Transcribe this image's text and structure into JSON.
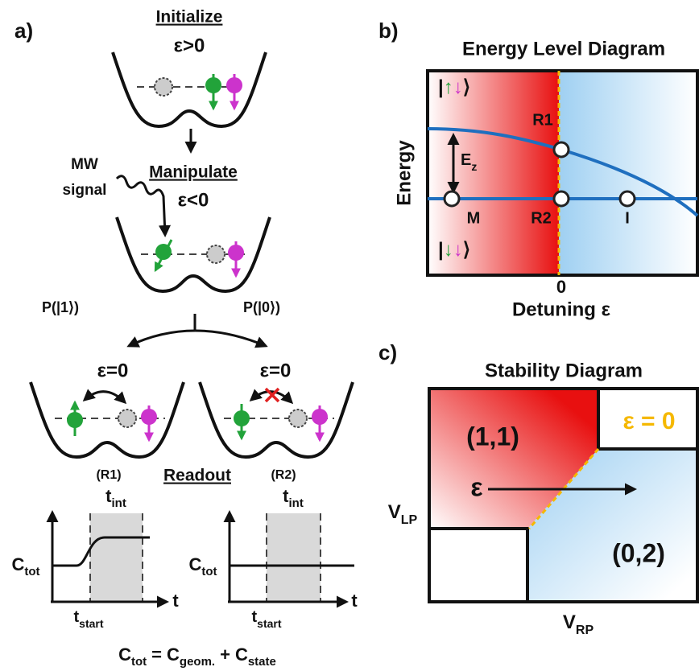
{
  "panel_a": {
    "label": "a)",
    "initialize": {
      "title": "Initialize",
      "condition": "ε>0"
    },
    "manipulate": {
      "mw_label": [
        "MW",
        "signal"
      ],
      "title": "Manipulate",
      "condition": "ε<0"
    },
    "branches": {
      "left": "P(|1⟩)",
      "right": "P(|0⟩)"
    },
    "readout": {
      "left_condition": "ε=0",
      "right_condition": "ε=0",
      "left_label": "(R1)",
      "right_label": "(R2)",
      "title": "Readout"
    },
    "plots": [
      {
        "y_label": {
          "base": "C",
          "sub": "tot"
        },
        "window_label": {
          "base": "t",
          "sub": "int"
        },
        "start_label": {
          "base": "t",
          "sub": "start"
        },
        "x_label": "t"
      },
      {
        "y_label": {
          "base": "C",
          "sub": "tot"
        },
        "window_label": {
          "base": "t",
          "sub": "int"
        },
        "start_label": {
          "base": "t",
          "sub": "start"
        },
        "x_label": "t"
      }
    ],
    "formula": {
      "lhs": {
        "base": "C",
        "sub": "tot"
      },
      "equals": "=",
      "term1": {
        "base": "C",
        "sub": "geom."
      },
      "plus": "+",
      "term2": {
        "base": "C",
        "sub": "state"
      }
    }
  },
  "panel_b": {
    "label": "b)",
    "title": "Energy Level Diagram",
    "upper_state": {
      "open": "|",
      "first": "↑",
      "second": "↓",
      "close": "⟩"
    },
    "lower_state": {
      "open": "|",
      "first": "↓",
      "second": "↓",
      "close": "⟩"
    },
    "points": {
      "r1": "R1",
      "m": "M",
      "r2": "R2",
      "i": "I"
    },
    "splitting": {
      "base": "E",
      "sub": "z"
    },
    "y_label": "Energy",
    "x_tick": "0",
    "x_label": "Detuning ε"
  },
  "panel_c": {
    "label": "c)",
    "title": "Stability Diagram",
    "region_11": "(1,1)",
    "region_02": "(0,2)",
    "boundary": "ε = 0",
    "y_label": {
      "base": "V",
      "sub": "LP"
    },
    "x_label": {
      "base": "V",
      "sub": "RP"
    },
    "arrow_label": "ε"
  }
}
